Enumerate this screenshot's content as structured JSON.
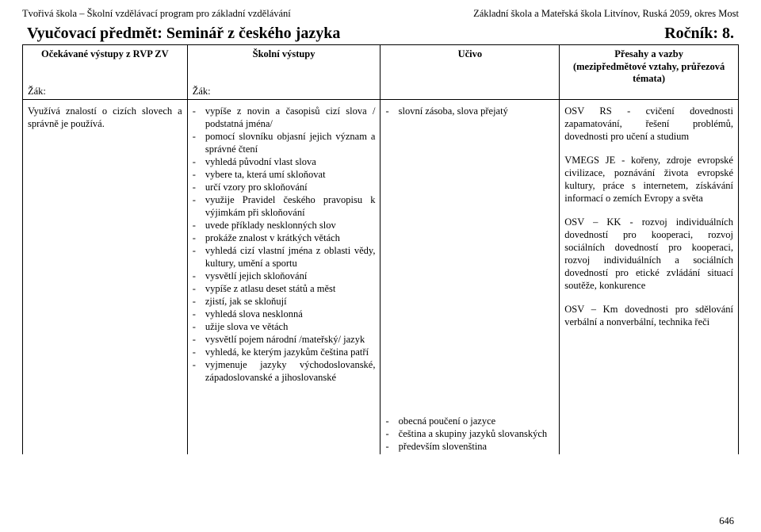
{
  "header": {
    "left": "Tvořivá škola – Školní vzdělávací program pro základní vzdělávání",
    "right": "Základní škola a Mateřská škola Litvínov, Ruská 2059, okres Most"
  },
  "title": {
    "left": "Vyučovací předmět: Seminář z českého jazyka",
    "right": "Ročník: 8."
  },
  "thead": {
    "c1": "Očekávané výstupy z RVP ZV",
    "c2": "Školní výstupy",
    "c3": "Učivo",
    "c4a": "Přesahy a vazby",
    "c4b": "(mezipředmětové vztahy, průřezová témata)"
  },
  "zak": "Žák:",
  "body": {
    "c1": "Využívá znalostí o cizích slovech a správně je používá.",
    "c2": [
      "vypíše z novin a časopisů cizí slova / podstatná jména/",
      "pomocí slovníku objasní jejich význam a správné čtení",
      "vyhledá původní vlast slova",
      "vybere ta, která umí skloňovat",
      "určí vzory pro skloňování",
      "využije Pravidel českého pravopisu k výjimkám při skloňování",
      "uvede příklady nesklonných slov",
      "prokáže znalost v krátkých větách",
      "vyhledá cizí vlastní jména z oblasti vědy, kultury, umění a sportu",
      "vysvětlí jejich skloňování",
      "vypíše z atlasu deset států a měst",
      "zjistí, jak se skloňují",
      "vyhledá slova nesklonná",
      "užije slova ve větách",
      "vysvětlí pojem národní /mateřský/ jazyk",
      "vyhledá, ke kterým jazykům čeština patří",
      "vyjmenuje jazyky východoslovanské, západoslovanské a jihoslovanské"
    ],
    "c3": [
      "slovní zásoba, slova přejatý",
      "obecná poučení o jazyce",
      "čeština a skupiny jazyků slovanských",
      "především slovenština"
    ],
    "c4": [
      "OSV RS - cvičení dovednosti zapamatování, řešení problémů, dovednosti pro učení a studium",
      "VMEGS JE - kořeny, zdroje evropské civilizace, poznávání života evropské kultury, práce s internetem, získávání informací o zemích Evropy a světa",
      "OSV – KK - rozvoj individuálních dovedností pro kooperaci, rozvoj sociálních dovedností pro kooperaci, rozvoj individuálních a sociálních dovedností pro etické zvládání situací soutěže, konkurence",
      "OSV – Km dovednosti pro sdělování verbální a nonverbální, technika řeči"
    ]
  },
  "pagenum": "646"
}
